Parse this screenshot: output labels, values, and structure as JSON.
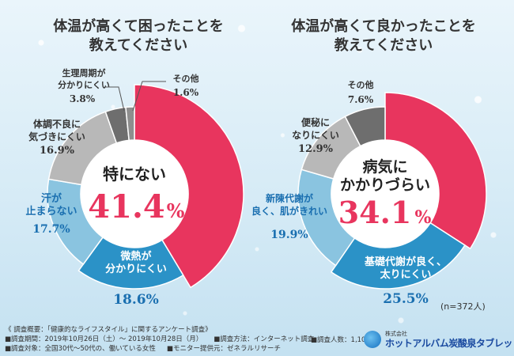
{
  "colors": {
    "pink": "#e8355e",
    "blue": "#2b92c7",
    "lightblue": "#8ac4e0",
    "gray": "#b8b8b8",
    "darkgray": "#6e6e6e",
    "blue_text": "#1a6fb0"
  },
  "chart_data": [
    {
      "type": "pie",
      "title": "体温が高くて困ったことを\n教えてください",
      "center_label": "特にない",
      "center_value": "41.4",
      "slices": [
        {
          "label": "特にない",
          "value": 41.4
        },
        {
          "label": "微熱が分かりにくい",
          "value": 18.6
        },
        {
          "label": "汗が止まらない",
          "value": 17.7
        },
        {
          "label": "体調不良に気づきにくい",
          "value": 16.9
        },
        {
          "label": "生理周期が分かりにくい",
          "value": 3.8
        },
        {
          "label": "その他",
          "value": 1.6
        }
      ]
    },
    {
      "type": "pie",
      "title": "体温が高くて良かったことを\n教えてください",
      "center_label": "病気にかかりづらい",
      "center_value": "34.1",
      "slices": [
        {
          "label": "病気にかかりづらい",
          "value": 34.1
        },
        {
          "label": "基礎代謝が良く、太りにくい",
          "value": 25.5
        },
        {
          "label": "新陳代謝が良く、肌がきれい",
          "value": 19.9
        },
        {
          "label": "便秘になりにくい",
          "value": 12.9
        },
        {
          "label": "その他",
          "value": 7.6
        }
      ]
    }
  ],
  "labels": {
    "left_center_l1": "特にない",
    "left_center_num": "41.4",
    "right_center_l1": "病気に",
    "right_center_l2": "かかりづらい",
    "right_center_num": "34.1",
    "pct_sign": "%",
    "left_slice1_l1": "微熱が",
    "left_slice1_l2": "分かりにくい",
    "left_slice1_pct": "18.6%",
    "left_slice2_l1": "汗が",
    "left_slice2_l2": "止まらない",
    "left_slice2_pct": "17.7%",
    "left_slice3_l1": "体調不良に",
    "left_slice3_l2": "気づきにくい",
    "left_slice3_pct": "16.9%",
    "left_slice4_l1": "生理周期が",
    "left_slice4_l2": "分かりにくい",
    "left_slice4_pct": "3.8%",
    "left_slice5_l1": "その他",
    "left_slice5_pct": "1.6%",
    "right_slice1_l1": "基礎代謝が良く、",
    "right_slice1_l2": "太りにくい",
    "right_slice1_pct": "25.5%",
    "right_slice2_l1": "新陳代謝が",
    "right_slice2_l2": "良く、肌がきれい",
    "right_slice2_pct": "19.9%",
    "right_slice3_l1": "便秘に",
    "right_slice3_l2": "なりにくい",
    "right_slice3_pct": "12.9%",
    "right_slice4_l1": "その他",
    "right_slice4_pct": "7.6%"
  },
  "sample_size": "(n=372人)",
  "footer": {
    "overview": "《 調査概要：「健康的なライフスタイル」に関するアンケート調査》",
    "period": "■調査期間：2019年10月26日（土）～ 2019年10月28日（月）",
    "method": "■調査方法：インターネット調査",
    "subjects": "■調査対象：全国30代～50代の、働いている女性",
    "provider": "■モニター提供元：ゼネラルリサーチ",
    "count": "■調査人数：1,103人"
  },
  "logo": {
    "company": "株式会社",
    "name": "ホットアルバム炭酸泉タブレット"
  }
}
